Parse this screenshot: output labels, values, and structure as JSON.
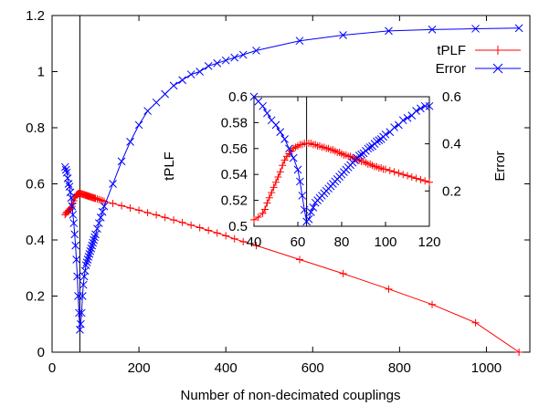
{
  "chart_data": [
    {
      "type": "line",
      "title": "",
      "xlabel": "Number of non-decimated couplings",
      "ylabel": "",
      "xlim": [
        0,
        1100
      ],
      "ylim": [
        0,
        1.2
      ],
      "xticks": [
        0,
        200,
        400,
        600,
        800,
        1000
      ],
      "yticks": [
        0,
        0.2,
        0.4,
        0.6,
        0.8,
        1,
        1.2
      ],
      "grid": false,
      "legend": "top-right",
      "vline_x": 64,
      "series": [
        {
          "name": "tPLF",
          "color": "#ff0000",
          "marker": "plus",
          "points": [
            [
              30,
              0.49
            ],
            [
              32,
              0.495
            ],
            [
              34,
              0.5
            ],
            [
              36,
              0.5
            ],
            [
              38,
              0.505
            ],
            [
              40,
              0.505
            ],
            [
              42,
              0.51
            ],
            [
              44,
              0.515
            ],
            [
              46,
              0.52
            ],
            [
              48,
              0.53
            ],
            [
              50,
              0.54
            ],
            [
              52,
              0.55
            ],
            [
              54,
              0.555
            ],
            [
              56,
              0.56
            ],
            [
              58,
              0.563
            ],
            [
              60,
              0.565
            ],
            [
              62,
              0.565
            ],
            [
              64,
              0.565
            ],
            [
              66,
              0.565
            ],
            [
              68,
              0.564
            ],
            [
              70,
              0.563
            ],
            [
              72,
              0.562
            ],
            [
              74,
              0.561
            ],
            [
              76,
              0.56
            ],
            [
              78,
              0.559
            ],
            [
              80,
              0.558
            ],
            [
              82,
              0.557
            ],
            [
              84,
              0.556
            ],
            [
              86,
              0.555
            ],
            [
              88,
              0.554
            ],
            [
              90,
              0.553
            ],
            [
              92,
              0.552
            ],
            [
              94,
              0.551
            ],
            [
              96,
              0.55
            ],
            [
              98,
              0.549
            ],
            [
              100,
              0.548
            ],
            [
              104,
              0.546
            ],
            [
              108,
              0.544
            ],
            [
              112,
              0.542
            ],
            [
              116,
              0.54
            ],
            [
              120,
              0.538
            ],
            [
              140,
              0.53
            ],
            [
              160,
              0.522
            ],
            [
              180,
              0.514
            ],
            [
              200,
              0.506
            ],
            [
              220,
              0.497
            ],
            [
              240,
              0.489
            ],
            [
              260,
              0.48
            ],
            [
              280,
              0.471
            ],
            [
              300,
              0.462
            ],
            [
              320,
              0.453
            ],
            [
              340,
              0.444
            ],
            [
              360,
              0.434
            ],
            [
              380,
              0.425
            ],
            [
              400,
              0.415
            ],
            [
              420,
              0.404
            ],
            [
              440,
              0.394
            ],
            [
              470,
              0.38
            ],
            [
              570,
              0.33
            ],
            [
              670,
              0.28
            ],
            [
              775,
              0.225
            ],
            [
              875,
              0.17
            ],
            [
              975,
              0.105
            ],
            [
              1075,
              0.0
            ]
          ]
        },
        {
          "name": "Error",
          "color": "#0000ff",
          "marker": "cross",
          "points": [
            [
              30,
              0.66
            ],
            [
              32,
              0.65
            ],
            [
              34,
              0.64
            ],
            [
              36,
              0.62
            ],
            [
              38,
              0.6
            ],
            [
              40,
              0.59
            ],
            [
              42,
              0.57
            ],
            [
              44,
              0.55
            ],
            [
              46,
              0.52
            ],
            [
              48,
              0.49
            ],
            [
              50,
              0.46
            ],
            [
              52,
              0.42
            ],
            [
              54,
              0.38
            ],
            [
              56,
              0.33
            ],
            [
              58,
              0.27
            ],
            [
              60,
              0.2
            ],
            [
              62,
              0.14
            ],
            [
              64,
              0.08
            ],
            [
              66,
              0.1
            ],
            [
              68,
              0.14
            ],
            [
              70,
              0.2
            ],
            [
              72,
              0.24
            ],
            [
              74,
              0.27
            ],
            [
              76,
              0.29
            ],
            [
              78,
              0.31
            ],
            [
              80,
              0.32
            ],
            [
              82,
              0.33
            ],
            [
              84,
              0.34
            ],
            [
              86,
              0.35
            ],
            [
              88,
              0.36
            ],
            [
              90,
              0.37
            ],
            [
              92,
              0.38
            ],
            [
              94,
              0.39
            ],
            [
              96,
              0.4
            ],
            [
              98,
              0.41
            ],
            [
              100,
              0.42
            ],
            [
              104,
              0.44
            ],
            [
              108,
              0.46
            ],
            [
              112,
              0.48
            ],
            [
              116,
              0.5
            ],
            [
              120,
              0.52
            ],
            [
              140,
              0.6
            ],
            [
              160,
              0.68
            ],
            [
              180,
              0.75
            ],
            [
              200,
              0.81
            ],
            [
              220,
              0.86
            ],
            [
              240,
              0.89
            ],
            [
              260,
              0.92
            ],
            [
              280,
              0.95
            ],
            [
              300,
              0.97
            ],
            [
              320,
              0.99
            ],
            [
              340,
              1.0
            ],
            [
              360,
              1.02
            ],
            [
              380,
              1.03
            ],
            [
              400,
              1.04
            ],
            [
              420,
              1.05
            ],
            [
              440,
              1.06
            ],
            [
              470,
              1.075
            ],
            [
              570,
              1.11
            ],
            [
              670,
              1.13
            ],
            [
              775,
              1.145
            ],
            [
              875,
              1.15
            ],
            [
              975,
              1.153
            ],
            [
              1075,
              1.155
            ]
          ]
        }
      ]
    },
    {
      "type": "line",
      "title": "",
      "xlabel": "",
      "ylabel": "tPLF",
      "y2label": "Error",
      "xlim": [
        40,
        120
      ],
      "ylim": [
        0.5,
        0.6
      ],
      "y2lim": [
        0.05,
        0.6
      ],
      "xticks": [
        40,
        60,
        80,
        100,
        120
      ],
      "yticks": [
        0.5,
        0.52,
        0.54,
        0.56,
        0.58,
        0.6
      ],
      "y2ticks": [
        0.2,
        0.4,
        0.6
      ],
      "grid": false,
      "vline_x": 64,
      "series": [
        {
          "name": "tPLF",
          "color": "#ff0000",
          "marker": "plus",
          "axis": "left",
          "points": [
            [
              40,
              0.505
            ],
            [
              42,
              0.507
            ],
            [
              44,
              0.51
            ],
            [
              45,
              0.513
            ],
            [
              46,
              0.518
            ],
            [
              47,
              0.522
            ],
            [
              48,
              0.526
            ],
            [
              49,
              0.53
            ],
            [
              50,
              0.534
            ],
            [
              51,
              0.538
            ],
            [
              52,
              0.542
            ],
            [
              53,
              0.547
            ],
            [
              54,
              0.551
            ],
            [
              55,
              0.554
            ],
            [
              56,
              0.556
            ],
            [
              57,
              0.558
            ],
            [
              58,
              0.56
            ],
            [
              59,
              0.561
            ],
            [
              60,
              0.562
            ],
            [
              61,
              0.563
            ],
            [
              62,
              0.563
            ],
            [
              63,
              0.564
            ],
            [
              64,
              0.564
            ],
            [
              65,
              0.564
            ],
            [
              66,
              0.564
            ],
            [
              67,
              0.563
            ],
            [
              68,
              0.563
            ],
            [
              69,
              0.562
            ],
            [
              70,
              0.562
            ],
            [
              71,
              0.561
            ],
            [
              72,
              0.561
            ],
            [
              73,
              0.56
            ],
            [
              74,
              0.56
            ],
            [
              75,
              0.559
            ],
            [
              76,
              0.559
            ],
            [
              77,
              0.558
            ],
            [
              78,
              0.557
            ],
            [
              79,
              0.557
            ],
            [
              80,
              0.556
            ],
            [
              81,
              0.555
            ],
            [
              82,
              0.555
            ],
            [
              83,
              0.554
            ],
            [
              84,
              0.554
            ],
            [
              85,
              0.553
            ],
            [
              86,
              0.552
            ],
            [
              87,
              0.552
            ],
            [
              88,
              0.551
            ],
            [
              89,
              0.55
            ],
            [
              90,
              0.55
            ],
            [
              91,
              0.549
            ],
            [
              92,
              0.548
            ],
            [
              93,
              0.548
            ],
            [
              94,
              0.547
            ],
            [
              95,
              0.546
            ],
            [
              96,
              0.546
            ],
            [
              97,
              0.545
            ],
            [
              98,
              0.545
            ],
            [
              99,
              0.544
            ],
            [
              100,
              0.544
            ],
            [
              102,
              0.543
            ],
            [
              104,
              0.542
            ],
            [
              106,
              0.541
            ],
            [
              108,
              0.54
            ],
            [
              110,
              0.539
            ],
            [
              112,
              0.538
            ],
            [
              114,
              0.537
            ],
            [
              116,
              0.536
            ],
            [
              118,
              0.535
            ],
            [
              120,
              0.534
            ]
          ]
        },
        {
          "name": "Error",
          "color": "#0000ff",
          "marker": "cross",
          "axis": "right",
          "points": [
            [
              40,
              0.6
            ],
            [
              42,
              0.58
            ],
            [
              44,
              0.56
            ],
            [
              46,
              0.53
            ],
            [
              48,
              0.5
            ],
            [
              50,
              0.48
            ],
            [
              52,
              0.45
            ],
            [
              54,
              0.42
            ],
            [
              56,
              0.38
            ],
            [
              58,
              0.34
            ],
            [
              60,
              0.29
            ],
            [
              61,
              0.24
            ],
            [
              62,
              0.18
            ],
            [
              63,
              0.12
            ],
            [
              64,
              0.07
            ],
            [
              65,
              0.08
            ],
            [
              66,
              0.11
            ],
            [
              67,
              0.13
            ],
            [
              68,
              0.15
            ],
            [
              69,
              0.16
            ],
            [
              70,
              0.17
            ],
            [
              71,
              0.18
            ],
            [
              72,
              0.19
            ],
            [
              73,
              0.2
            ],
            [
              74,
              0.21
            ],
            [
              75,
              0.22
            ],
            [
              76,
              0.23
            ],
            [
              77,
              0.24
            ],
            [
              78,
              0.25
            ],
            [
              79,
              0.26
            ],
            [
              80,
              0.27
            ],
            [
              81,
              0.28
            ],
            [
              82,
              0.29
            ],
            [
              83,
              0.3
            ],
            [
              84,
              0.31
            ],
            [
              85,
              0.32
            ],
            [
              86,
              0.33
            ],
            [
              87,
              0.34
            ],
            [
              88,
              0.35
            ],
            [
              89,
              0.355
            ],
            [
              90,
              0.36
            ],
            [
              91,
              0.37
            ],
            [
              92,
              0.38
            ],
            [
              93,
              0.385
            ],
            [
              94,
              0.39
            ],
            [
              95,
              0.4
            ],
            [
              96,
              0.41
            ],
            [
              97,
              0.415
            ],
            [
              98,
              0.42
            ],
            [
              99,
              0.43
            ],
            [
              100,
              0.44
            ],
            [
              102,
              0.45
            ],
            [
              104,
              0.47
            ],
            [
              106,
              0.48
            ],
            [
              108,
              0.5
            ],
            [
              110,
              0.51
            ],
            [
              112,
              0.52
            ],
            [
              114,
              0.54
            ],
            [
              116,
              0.55
            ],
            [
              118,
              0.56
            ],
            [
              120,
              0.56
            ]
          ]
        }
      ]
    }
  ]
}
